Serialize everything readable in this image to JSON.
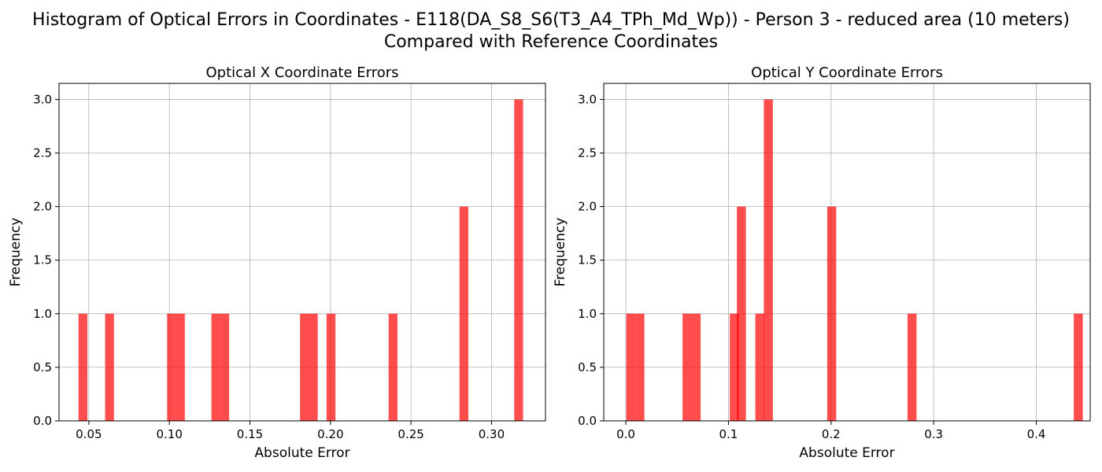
{
  "title": {
    "line1": "Histogram of Optical Errors in Coordinates - E118(DA_S8_S6(T3_A4_TPh_Md_Wp)) - Person 3 - reduced area (10 meters)",
    "line2": "Compared with Reference Coordinates"
  },
  "colors": {
    "bar": "#ff0000",
    "bar_opacity": 0.7,
    "grid": "#b0b0b0"
  },
  "chart_data": [
    {
      "type": "bar",
      "title": "Optical X Coordinate Errors",
      "xlabel": "Absolute Error",
      "ylabel": "Frequency",
      "xlim": [
        0.0315,
        0.3335
      ],
      "ylim": [
        0,
        3.15
      ],
      "xticks": [
        0.05,
        0.1,
        0.15,
        0.2,
        0.25,
        0.3
      ],
      "xtick_labels": [
        "0.05",
        "0.10",
        "0.15",
        "0.20",
        "0.25",
        "0.30"
      ],
      "yticks": [
        0,
        0.5,
        1,
        1.5,
        2,
        2.5,
        3
      ],
      "ytick_labels": [
        "0.0",
        "0.5",
        "1.0",
        "1.5",
        "2.0",
        "2.5",
        "3.0"
      ],
      "grid": true,
      "bin_width": 0.0055,
      "bins": [
        {
          "x0": 0.0436,
          "count": 1
        },
        {
          "x0": 0.0601,
          "count": 1
        },
        {
          "x0": 0.0986,
          "count": 1
        },
        {
          "x0": 0.1041,
          "count": 1
        },
        {
          "x0": 0.1261,
          "count": 1
        },
        {
          "x0": 0.1316,
          "count": 1
        },
        {
          "x0": 0.1811,
          "count": 1
        },
        {
          "x0": 0.1866,
          "count": 1
        },
        {
          "x0": 0.1976,
          "count": 1
        },
        {
          "x0": 0.2361,
          "count": 1
        },
        {
          "x0": 0.2801,
          "count": 2
        },
        {
          "x0": 0.3141,
          "count": 3
        }
      ]
    },
    {
      "type": "bar",
      "title": "Optical Y Coordinate Errors",
      "xlabel": "Absolute Error",
      "ylabel": "Frequency",
      "xlim": [
        -0.0215,
        0.4525
      ],
      "ylim": [
        0,
        3.15
      ],
      "xticks": [
        0.0,
        0.1,
        0.2,
        0.3,
        0.4
      ],
      "xtick_labels": [
        "0.0",
        "0.1",
        "0.2",
        "0.3",
        "0.4"
      ],
      "yticks": [
        0,
        0.5,
        1,
        1.5,
        2,
        2.5,
        3
      ],
      "ytick_labels": [
        "0.0",
        "0.5",
        "1.0",
        "1.5",
        "2.0",
        "2.5",
        "3.0"
      ],
      "grid": true,
      "bin_width": 0.0088,
      "bins": [
        {
          "x0": 0.0005,
          "count": 1
        },
        {
          "x0": 0.0093,
          "count": 1
        },
        {
          "x0": 0.0553,
          "count": 1
        },
        {
          "x0": 0.0641,
          "count": 1
        },
        {
          "x0": 0.1013,
          "count": 1
        },
        {
          "x0": 0.1082,
          "count": 2
        },
        {
          "x0": 0.1262,
          "count": 1
        },
        {
          "x0": 0.1345,
          "count": 3
        },
        {
          "x0": 0.1962,
          "count": 2
        },
        {
          "x0": 0.2745,
          "count": 1
        },
        {
          "x0": 0.4365,
          "count": 1
        }
      ]
    }
  ]
}
